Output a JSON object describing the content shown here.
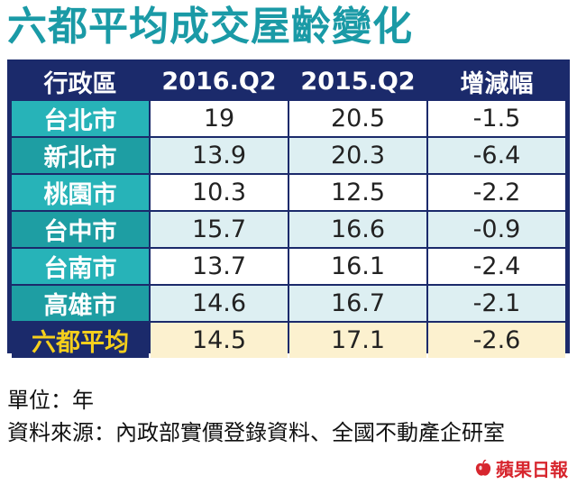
{
  "title": "六都平均成交屋齡變化",
  "chart_data": {
    "type": "table",
    "columns": [
      "行政區",
      "2016.Q2",
      "2015.Q2",
      "增減幅"
    ],
    "rows": [
      {
        "region": "台北市",
        "q2016": "19",
        "q2015": "20.5",
        "change": "-1.5"
      },
      {
        "region": "新北市",
        "q2016": "13.9",
        "q2015": "20.3",
        "change": "-6.4"
      },
      {
        "region": "桃園市",
        "q2016": "10.3",
        "q2015": "12.5",
        "change": "-2.2"
      },
      {
        "region": "台中市",
        "q2016": "15.7",
        "q2015": "16.6",
        "change": "-0.9"
      },
      {
        "region": "台南市",
        "q2016": "13.7",
        "q2015": "16.1",
        "change": "-2.4"
      },
      {
        "region": "高雄市",
        "q2016": "14.6",
        "q2015": "16.7",
        "change": "-2.1"
      },
      {
        "region": "六都平均",
        "q2016": "14.5",
        "q2015": "17.1",
        "change": "-2.6"
      }
    ]
  },
  "footer": {
    "unit": "單位：年",
    "source": "資料來源：內政部實價登錄資料、全國不動產企研室"
  },
  "logo": {
    "text": "蘋果日報",
    "icon": "apple-icon"
  },
  "colors": {
    "title": "#1a9aa6",
    "header_bg": "#1b2a6b",
    "row_header_bg": "#27b3b8",
    "average_label": "#f5cf1c",
    "average_bg": "#fcf1cf",
    "alt_row_bg": "#ddeff2",
    "logo": "#d7262e"
  }
}
